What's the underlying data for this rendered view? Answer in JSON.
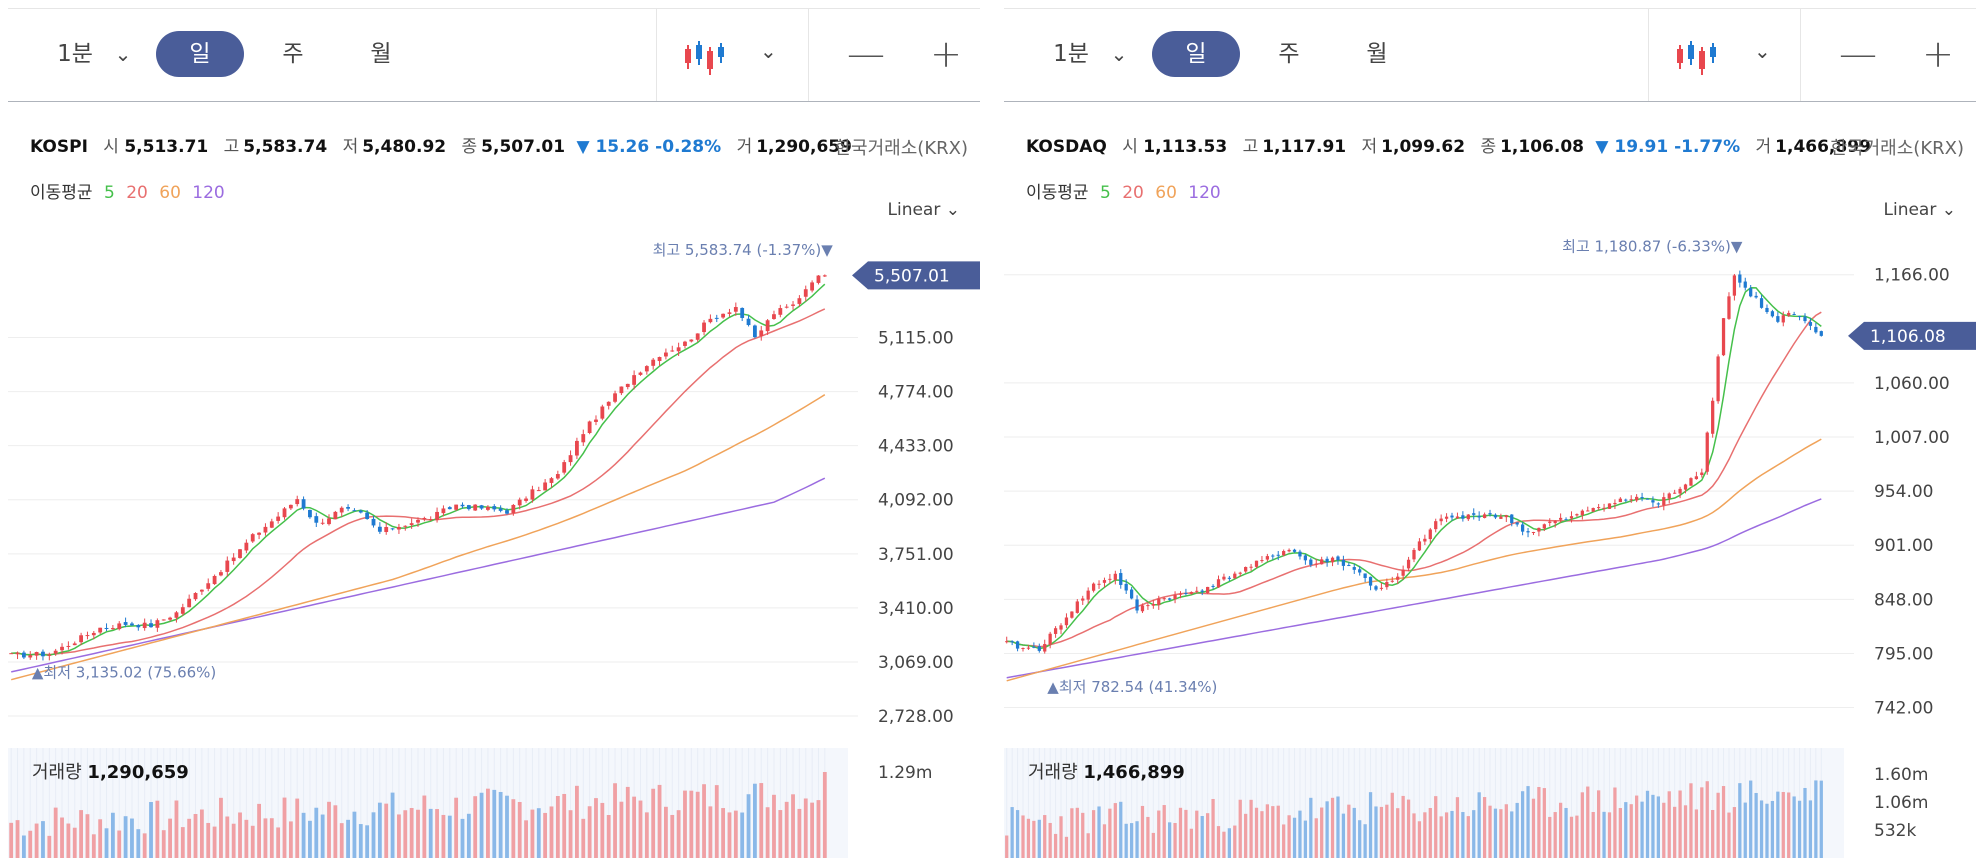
{
  "toolbar": {
    "timeframe_minute": "1분",
    "timeframe_day": "일",
    "timeframe_week": "주",
    "timeframe_month": "월",
    "zoom_out": "—",
    "zoom_in": "+"
  },
  "colors": {
    "up": "#e8474e",
    "down": "#1f7ad1",
    "ma5": "#45c04b",
    "ma20": "#e87070",
    "ma60": "#f0a35a",
    "ma120": "#9b6ce0",
    "accent": "#4a5d99"
  },
  "chart_data": [
    {
      "type": "candlestick",
      "symbol": "KOSPI",
      "quote": {
        "open_label": "시",
        "open": "5,513.71",
        "high_label": "고",
        "high": "5,583.74",
        "low_label": "저",
        "low": "5,480.92",
        "close_label": "종",
        "close": "5,507.01",
        "change": "▼ 15.26 -0.28%",
        "volume_label": "거",
        "volume": "1,290,659"
      },
      "exchange": "한국거래소(KRX)",
      "ma_label": "이동평균",
      "ma_periods": [
        "5",
        "20",
        "60",
        "120"
      ],
      "scale": "Linear",
      "y_ticks": [
        "5,115.00",
        "4,774.00",
        "4,433.00",
        "4,092.00",
        "3,751.00",
        "3,410.00",
        "3,069.00",
        "2,728.00"
      ],
      "y_tick_values": [
        5115,
        4774,
        4433,
        4092,
        3751,
        3410,
        3069,
        2728
      ],
      "ylim": [
        2640,
        5730
      ],
      "last_price": "5,507.01",
      "last_value": 5507.01,
      "high_marker": "최고 5,583.74 (-1.37%)▼",
      "high_value": 5583.74,
      "low_marker": "▲최저 3,135.02 (75.66%)",
      "low_value": 3135.02,
      "anchors": [
        [
          0,
          3110
        ],
        [
          6,
          3120
        ],
        [
          10,
          3200
        ],
        [
          14,
          3285
        ],
        [
          18,
          3310
        ],
        [
          22,
          3300
        ],
        [
          26,
          3380
        ],
        [
          30,
          3540
        ],
        [
          34,
          3690
        ],
        [
          38,
          3860
        ],
        [
          42,
          3990
        ],
        [
          45,
          4100
        ],
        [
          48,
          3940
        ],
        [
          52,
          4030
        ],
        [
          55,
          4000
        ],
        [
          58,
          3890
        ],
        [
          62,
          3940
        ],
        [
          66,
          3980
        ],
        [
          70,
          4060
        ],
        [
          74,
          4040
        ],
        [
          78,
          4020
        ],
        [
          82,
          4140
        ],
        [
          86,
          4250
        ],
        [
          90,
          4520
        ],
        [
          94,
          4710
        ],
        [
          98,
          4880
        ],
        [
          102,
          5010
        ],
        [
          106,
          5080
        ],
        [
          110,
          5230
        ],
        [
          114,
          5310
        ],
        [
          117,
          5110
        ],
        [
          120,
          5270
        ],
        [
          123,
          5320
        ],
        [
          126,
          5480
        ],
        [
          128,
          5507.01
        ]
      ],
      "volume_label": "거래량",
      "volume_value": "1,290,659",
      "volume_ticks": [
        "1.29m"
      ],
      "volume_tick_values": [
        1.29
      ],
      "volume_max": 1.5,
      "volume_latest": 1.29
    },
    {
      "type": "candlestick",
      "symbol": "KOSDAQ",
      "quote": {
        "open_label": "시",
        "open": "1,113.53",
        "high_label": "고",
        "high": "1,117.91",
        "low_label": "저",
        "low": "1,099.62",
        "close_label": "종",
        "close": "1,106.08",
        "change": "▼ 19.91 -1.77%",
        "volume_label": "거",
        "volume": "1,466,899"
      },
      "exchange": "한국거래소(KRX)",
      "ma_label": "이동평균",
      "ma_periods": [
        "5",
        "20",
        "60",
        "120"
      ],
      "scale": "Linear",
      "y_ticks": [
        "1,166.00",
        "1,060.00",
        "1,007.00",
        "954.00",
        "901.00",
        "848.00",
        "795.00",
        "742.00"
      ],
      "y_tick_values": [
        1166,
        1060,
        1007,
        954,
        901,
        848,
        795,
        742
      ],
      "ylim": [
        720,
        1200
      ],
      "last_price": "1,106.08",
      "last_value": 1106.08,
      "high_marker": "최고 1,180.87 (-6.33%)▼",
      "high_value": 1180.87,
      "low_marker": "▲최저 782.54 (41.34%)",
      "low_value": 782.54,
      "anchors": [
        [
          0,
          805
        ],
        [
          3,
          800
        ],
        [
          6,
          800
        ],
        [
          9,
          818
        ],
        [
          12,
          838
        ],
        [
          16,
          862
        ],
        [
          20,
          872
        ],
        [
          24,
          838
        ],
        [
          28,
          848
        ],
        [
          32,
          852
        ],
        [
          36,
          858
        ],
        [
          40,
          868
        ],
        [
          44,
          878
        ],
        [
          48,
          888
        ],
        [
          52,
          898
        ],
        [
          56,
          882
        ],
        [
          60,
          888
        ],
        [
          64,
          878
        ],
        [
          68,
          858
        ],
        [
          72,
          868
        ],
        [
          76,
          903
        ],
        [
          80,
          928
        ],
        [
          84,
          928
        ],
        [
          88,
          932
        ],
        [
          92,
          928
        ],
        [
          96,
          913
        ],
        [
          100,
          923
        ],
        [
          104,
          928
        ],
        [
          108,
          938
        ],
        [
          112,
          943
        ],
        [
          116,
          948
        ],
        [
          120,
          942
        ],
        [
          124,
          958
        ],
        [
          128,
          975
        ],
        [
          130,
          1045
        ],
        [
          132,
          1125
        ],
        [
          134,
          1165
        ],
        [
          136,
          1152
        ],
        [
          138,
          1142
        ],
        [
          140,
          1128
        ],
        [
          142,
          1120
        ],
        [
          144,
          1128
        ],
        [
          146,
          1122
        ],
        [
          148,
          1115
        ],
        [
          150,
          1106.08
        ]
      ],
      "volume_label": "거래량",
      "volume_value": "1,466,899",
      "volume_ticks": [
        "1.60m",
        "1.06m",
        "532k"
      ],
      "volume_tick_values": [
        1.6,
        1.06,
        0.532
      ],
      "volume_max": 1.9,
      "volume_latest": 1.47
    }
  ]
}
